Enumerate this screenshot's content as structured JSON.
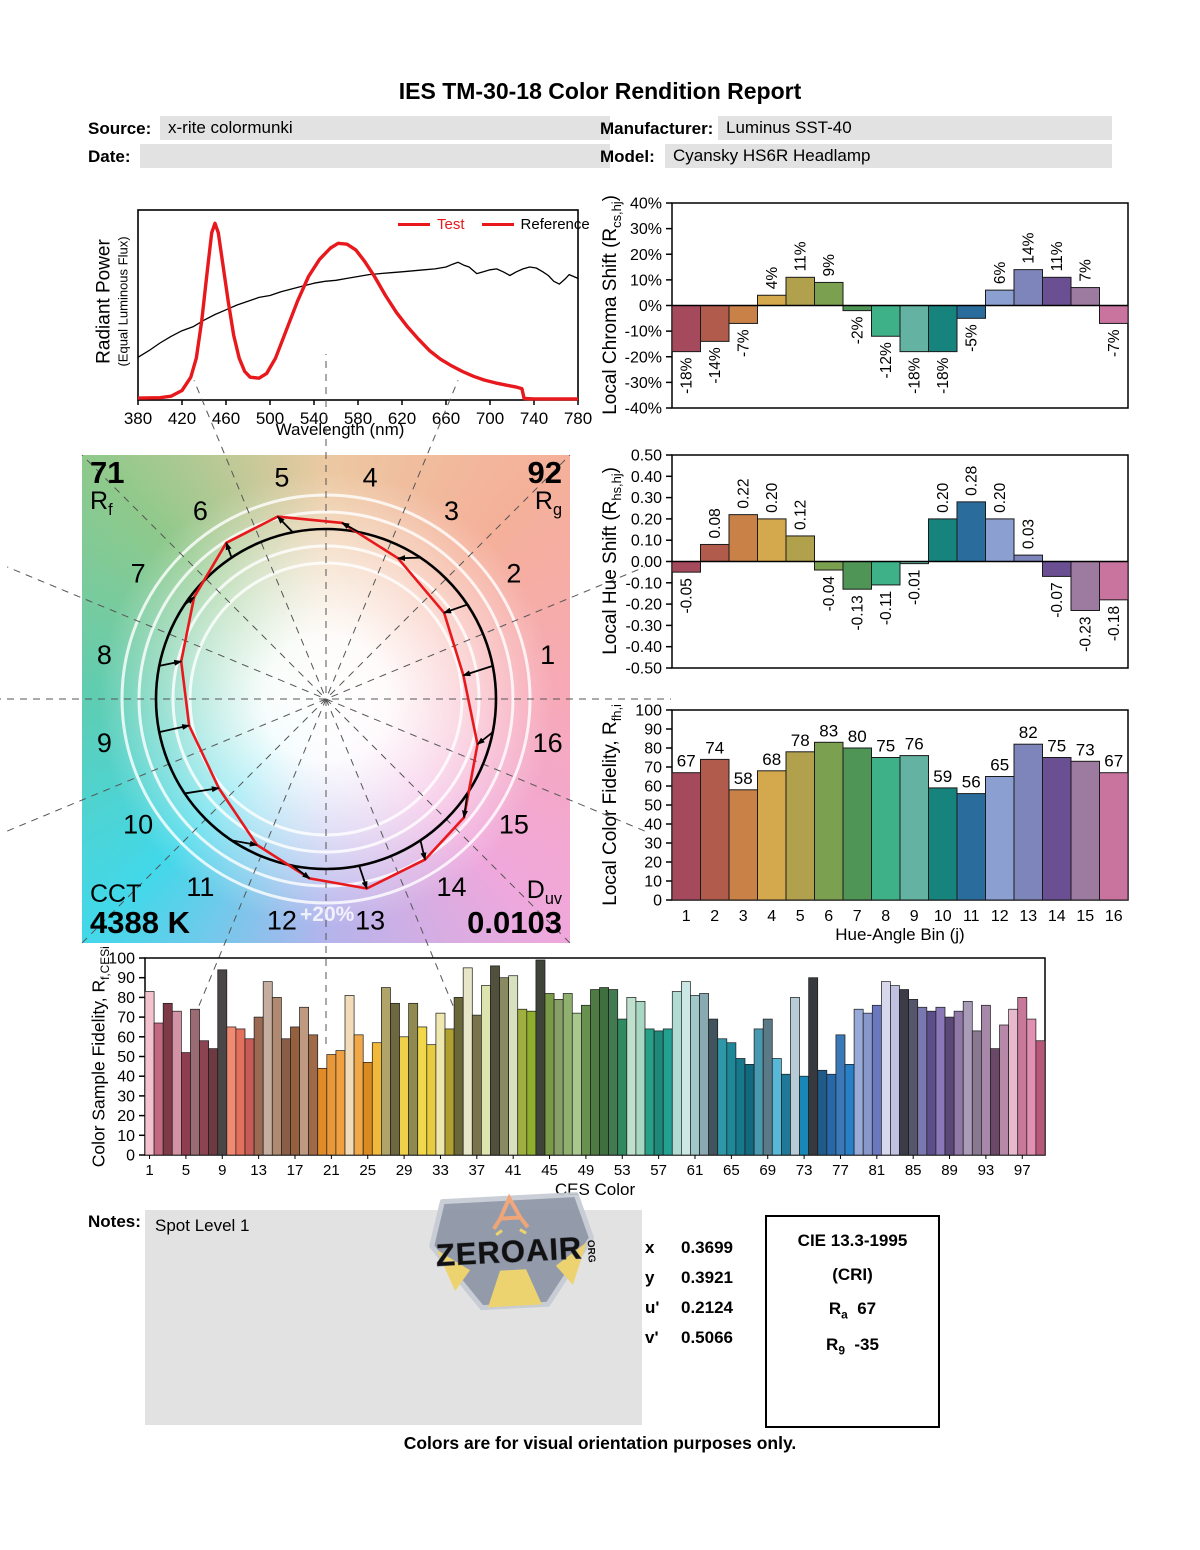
{
  "header": {
    "title": "IES TM-30-18 Color Rendition Report",
    "source_label": "Source:",
    "source_value": "x-rite colormunki",
    "date_label": "Date:",
    "date_value": "",
    "manufacturer_label": "Manufacturer:",
    "manufacturer_value": "Luminus SST-40",
    "model_label": "Model:",
    "model_value": "Cyansky HS6R Headlamp"
  },
  "colors": {
    "accent_red": "#e8191c",
    "field_bg": "#e2e2e2",
    "hue_bins": [
      "#a5495c",
      "#b05b4b",
      "#c98148",
      "#d4a94e",
      "#b2a14c",
      "#7ba04f",
      "#4f9556",
      "#3eb189",
      "#64b2a2",
      "#17837d",
      "#2a6d9d",
      "#8b9fd1",
      "#7e85ba",
      "#6b4f93",
      "#9d7ba1",
      "#c9739f"
    ]
  },
  "cvg": {
    "rf": {
      "value": "71",
      "base": "R",
      "sub": "f"
    },
    "rg": {
      "value": "92",
      "base": "R",
      "sub": "g"
    },
    "cct": {
      "label": "CCT",
      "value": "4388 K"
    },
    "duv": {
      "base": "D",
      "sub": "uv",
      "value": "0.0103"
    },
    "ring_label": "+20%",
    "bin_labels": [
      "1",
      "2",
      "3",
      "4",
      "5",
      "6",
      "7",
      "8",
      "9",
      "10",
      "11",
      "12",
      "13",
      "14",
      "15",
      "16"
    ]
  },
  "notes": {
    "label": "Notes:",
    "value": "Spot Level 1"
  },
  "logo": {
    "text": "ZEROAIR",
    "suffix": "ORG"
  },
  "colorimetry": {
    "rows": [
      {
        "label": "x",
        "value": "0.3699"
      },
      {
        "label": "y",
        "value": "0.3921"
      },
      {
        "label": "u'",
        "value": "0.2124"
      },
      {
        "label": "v'",
        "value": "0.5066"
      }
    ]
  },
  "cri": {
    "title": "CIE 13.3-1995",
    "subtitle": "(CRI)",
    "ra": {
      "base": "R",
      "sub": "a",
      "value": "67"
    },
    "r9": {
      "base": "R",
      "sub": "9",
      "value": "-35"
    }
  },
  "footer": {
    "text": "Colors are for visual orientation purposes only."
  },
  "chart_data": [
    {
      "id": "spd",
      "type": "line",
      "xlabel": "Wavelength (nm)",
      "ylabel_line1": "Radiant Power",
      "ylabel_line2": "(Equal Luminous Flux)",
      "xlim": [
        380,
        780
      ],
      "ylim": [
        0,
        1
      ],
      "x_ticks": [
        "380",
        "420",
        "460",
        "500",
        "540",
        "580",
        "620",
        "660",
        "700",
        "740",
        "780"
      ],
      "legend": [
        {
          "label": "Test",
          "color": "#e8191c"
        },
        {
          "label": "Reference",
          "color": "#000000"
        }
      ],
      "series": [
        {
          "name": "Test",
          "color": "#e8191c",
          "width": 3.4,
          "points": [
            [
              380,
              0.01
            ],
            [
              400,
              0.012
            ],
            [
              410,
              0.02
            ],
            [
              420,
              0.05
            ],
            [
              428,
              0.12
            ],
            [
              433,
              0.22
            ],
            [
              438,
              0.42
            ],
            [
              443,
              0.68
            ],
            [
              447,
              0.88
            ],
            [
              450,
              0.93
            ],
            [
              453,
              0.88
            ],
            [
              457,
              0.72
            ],
            [
              462,
              0.52
            ],
            [
              467,
              0.34
            ],
            [
              472,
              0.22
            ],
            [
              477,
              0.15
            ],
            [
              482,
              0.12
            ],
            [
              490,
              0.115
            ],
            [
              497,
              0.14
            ],
            [
              505,
              0.22
            ],
            [
              515,
              0.37
            ],
            [
              525,
              0.52
            ],
            [
              535,
              0.65
            ],
            [
              545,
              0.74
            ],
            [
              555,
              0.8
            ],
            [
              562,
              0.825
            ],
            [
              570,
              0.82
            ],
            [
              578,
              0.79
            ],
            [
              586,
              0.73
            ],
            [
              595,
              0.65
            ],
            [
              605,
              0.55
            ],
            [
              615,
              0.46
            ],
            [
              625,
              0.385
            ],
            [
              635,
              0.32
            ],
            [
              645,
              0.26
            ],
            [
              655,
              0.215
            ],
            [
              665,
              0.18
            ],
            [
              675,
              0.15
            ],
            [
              685,
              0.125
            ],
            [
              695,
              0.105
            ],
            [
              705,
              0.09
            ],
            [
              715,
              0.078
            ],
            [
              724,
              0.068
            ],
            [
              729,
              0.06
            ],
            [
              731,
              0.008
            ],
            [
              740,
              0.006
            ],
            [
              780,
              0.006
            ]
          ]
        },
        {
          "name": "Reference",
          "color": "#000000",
          "width": 1.3,
          "points": [
            [
              380,
              0.225
            ],
            [
              390,
              0.26
            ],
            [
              400,
              0.3
            ],
            [
              410,
              0.335
            ],
            [
              420,
              0.365
            ],
            [
              430,
              0.385
            ],
            [
              440,
              0.42
            ],
            [
              450,
              0.45
            ],
            [
              460,
              0.475
            ],
            [
              470,
              0.5
            ],
            [
              480,
              0.52
            ],
            [
              490,
              0.54
            ],
            [
              500,
              0.55
            ],
            [
              510,
              0.57
            ],
            [
              520,
              0.585
            ],
            [
              530,
              0.6
            ],
            [
              540,
              0.615
            ],
            [
              550,
              0.625
            ],
            [
              560,
              0.63
            ],
            [
              570,
              0.64
            ],
            [
              580,
              0.65
            ],
            [
              590,
              0.66
            ],
            [
              600,
              0.665
            ],
            [
              610,
              0.67
            ],
            [
              620,
              0.675
            ],
            [
              630,
              0.68
            ],
            [
              640,
              0.685
            ],
            [
              650,
              0.69
            ],
            [
              660,
              0.7
            ],
            [
              666,
              0.715
            ],
            [
              671,
              0.725
            ],
            [
              676,
              0.71
            ],
            [
              681,
              0.7
            ],
            [
              688,
              0.665
            ],
            [
              694,
              0.675
            ],
            [
              700,
              0.685
            ],
            [
              706,
              0.69
            ],
            [
              712,
              0.675
            ],
            [
              718,
              0.655
            ],
            [
              724,
              0.675
            ],
            [
              730,
              0.69
            ],
            [
              736,
              0.7
            ],
            [
              742,
              0.695
            ],
            [
              748,
              0.675
            ],
            [
              753,
              0.655
            ],
            [
              758,
              0.625
            ],
            [
              763,
              0.61
            ],
            [
              768,
              0.635
            ],
            [
              772,
              0.66
            ],
            [
              776,
              0.65
            ],
            [
              780,
              0.64
            ]
          ]
        }
      ]
    },
    {
      "id": "chroma",
      "type": "bar",
      "ylabel": {
        "pre": "Local Chroma Shift (R",
        "sub": "cs,hj",
        "post": ")"
      },
      "ylim": [
        -40,
        40
      ],
      "yticks": [
        {
          "v": 40,
          "label": "40%"
        },
        {
          "v": 30,
          "label": "30%"
        },
        {
          "v": 20,
          "label": "20%"
        },
        {
          "v": 10,
          "label": "10%"
        },
        {
          "v": 0,
          "label": "0%"
        },
        {
          "v": -10,
          "label": "-10%"
        },
        {
          "v": -20,
          "label": "-20%"
        },
        {
          "v": -30,
          "label": "-30%"
        },
        {
          "v": -40,
          "label": "-40%"
        }
      ],
      "categories": [
        1,
        2,
        3,
        4,
        5,
        6,
        7,
        8,
        9,
        10,
        11,
        12,
        13,
        14,
        15,
        16
      ],
      "values": [
        -18,
        -14,
        -7,
        4,
        11,
        9,
        -2,
        -12,
        -18,
        -18,
        -5,
        6,
        14,
        11,
        7,
        -7
      ],
      "labels": [
        "-18%",
        "-14%",
        "-7%",
        "4%",
        "11%",
        "9%",
        "-2%",
        "-12%",
        "-18%",
        "-18%",
        "-5%",
        "6%",
        "14%",
        "11%",
        "7%",
        "-7%"
      ]
    },
    {
      "id": "hue",
      "type": "bar",
      "ylabel": {
        "pre": "Local Hue Shift (R",
        "sub": "hs,hj",
        "post": ")"
      },
      "ylim": [
        -0.5,
        0.5
      ],
      "yticks": [
        {
          "v": 0.5,
          "label": "0.50"
        },
        {
          "v": 0.4,
          "label": "0.40"
        },
        {
          "v": 0.3,
          "label": "0.30"
        },
        {
          "v": 0.2,
          "label": "0.20"
        },
        {
          "v": 0.1,
          "label": "0.10"
        },
        {
          "v": 0,
          "label": "0.00"
        },
        {
          "v": -0.1,
          "label": "-0.10"
        },
        {
          "v": -0.2,
          "label": "-0.20"
        },
        {
          "v": -0.3,
          "label": "-0.30"
        },
        {
          "v": -0.4,
          "label": "-0.40"
        },
        {
          "v": -0.5,
          "label": "-0.50"
        }
      ],
      "categories": [
        1,
        2,
        3,
        4,
        5,
        6,
        7,
        8,
        9,
        10,
        11,
        12,
        13,
        14,
        15,
        16
      ],
      "values": [
        -0.05,
        0.08,
        0.22,
        0.2,
        0.12,
        -0.04,
        -0.13,
        -0.11,
        -0.01,
        0.2,
        0.28,
        0.2,
        0.03,
        -0.07,
        -0.23,
        -0.18
      ],
      "labels": [
        "-0.05",
        "0.08",
        "0.22",
        "0.20",
        "0.12",
        "-0.04",
        "-0.13",
        "-0.11",
        "-0.01",
        "0.20",
        "0.28",
        "0.20",
        "0.03",
        "-0.07",
        "-0.23",
        "-0.18"
      ]
    },
    {
      "id": "localfid",
      "type": "bar",
      "ylabel": {
        "pre": "Local Color Fidelity, R",
        "sub": "fh,i",
        "post": ""
      },
      "xlabel": "Hue-Angle Bin (j)",
      "ylim": [
        0,
        100
      ],
      "yticks": [
        {
          "v": 100,
          "label": "100"
        },
        {
          "v": 90,
          "label": "90"
        },
        {
          "v": 80,
          "label": "80"
        },
        {
          "v": 70,
          "label": "70"
        },
        {
          "v": 60,
          "label": "60"
        },
        {
          "v": 50,
          "label": "50"
        },
        {
          "v": 40,
          "label": "40"
        },
        {
          "v": 30,
          "label": "30"
        },
        {
          "v": 20,
          "label": "20"
        },
        {
          "v": 10,
          "label": "10"
        },
        {
          "v": 0,
          "label": "0"
        }
      ],
      "categories": [
        "1",
        "2",
        "3",
        "4",
        "5",
        "6",
        "7",
        "8",
        "9",
        "10",
        "11",
        "12",
        "13",
        "14",
        "15",
        "16"
      ],
      "values": [
        67,
        74,
        58,
        68,
        78,
        83,
        80,
        75,
        76,
        59,
        56,
        65,
        82,
        75,
        73,
        67
      ],
      "labels": [
        "67",
        "74",
        "58",
        "68",
        "78",
        "83",
        "80",
        "75",
        "76",
        "59",
        "56",
        "65",
        "82",
        "75",
        "73",
        "67"
      ]
    },
    {
      "id": "ces",
      "type": "bar",
      "ylabel": {
        "pre": "Color Sample Fidelity, R",
        "sub": "f,CESi",
        "post": ""
      },
      "xlabel": "CES Color",
      "ylim": [
        0,
        100
      ],
      "yticks": [
        {
          "v": 100,
          "label": "100"
        },
        {
          "v": 90,
          "label": "90"
        },
        {
          "v": 80,
          "label": "80"
        },
        {
          "v": 70,
          "label": "70"
        },
        {
          "v": 60,
          "label": "60"
        },
        {
          "v": 50,
          "label": "50"
        },
        {
          "v": 40,
          "label": "40"
        },
        {
          "v": 30,
          "label": "30"
        },
        {
          "v": 20,
          "label": "20"
        },
        {
          "v": 10,
          "label": "10"
        },
        {
          "v": 0,
          "label": "0"
        }
      ],
      "x_tick_every": 4,
      "x_tick_labels": [
        "1",
        "5",
        "9",
        "13",
        "17",
        "21",
        "25",
        "29",
        "33",
        "37",
        "41",
        "45",
        "49",
        "53",
        "57",
        "61",
        "65",
        "69",
        "73",
        "77",
        "81",
        "85",
        "89",
        "93",
        "97"
      ],
      "values": [
        83,
        67,
        77,
        73,
        52,
        74,
        58,
        54,
        94,
        65,
        64,
        59,
        70,
        88,
        80,
        59,
        65,
        75,
        61,
        44,
        51,
        53,
        81,
        61,
        47,
        57,
        85,
        77,
        60,
        77,
        65,
        56,
        72,
        64,
        80,
        95,
        71,
        86,
        96,
        90,
        91,
        74,
        73,
        99,
        82,
        79,
        82,
        72,
        76,
        84,
        85,
        84,
        69,
        80,
        78,
        64,
        63,
        64,
        83,
        88,
        81,
        82,
        69,
        59,
        57,
        49,
        46,
        64,
        69,
        49,
        41,
        80,
        40,
        90,
        43,
        41,
        61,
        46,
        74,
        72,
        76,
        88,
        86,
        84,
        79,
        75,
        73,
        75,
        70,
        73,
        78,
        63,
        76,
        54,
        66,
        74,
        80,
        69,
        58
      ],
      "bar_colors": [
        "#f2c3ce",
        "#c26880",
        "#7e3b47",
        "#d492a6",
        "#8e3d4e",
        "#9a6b72",
        "#8c4352",
        "#6e3a42",
        "#4a4648",
        "#f28a72",
        "#e2705c",
        "#c75b55",
        "#9a6a52",
        "#c5ada0",
        "#b08a70",
        "#8a5d48",
        "#95603e",
        "#c09a80",
        "#a06a48",
        "#e08a28",
        "#e89838",
        "#f0a040",
        "#f2dbb8",
        "#f0a848",
        "#d98a20",
        "#f2b83a",
        "#b0a468",
        "#6e6840",
        "#eed04a",
        "#908a50",
        "#f0d84a",
        "#e8cc40",
        "#eee8b0",
        "#b0a030",
        "#6a6838",
        "#e8e6c8",
        "#7a744a",
        "#dde4b0",
        "#50503c",
        "#8a8a62",
        "#d8e0c0",
        "#a0b040",
        "#8fae2e",
        "#3e4438",
        "#7a9a48",
        "#88a068",
        "#90b070",
        "#a8c890",
        "#68904e",
        "#4e7a44",
        "#3f6e3f",
        "#427a52",
        "#2f8a60",
        "#bfe0cc",
        "#a8d8c4",
        "#28a088",
        "#1f8878",
        "#22a090",
        "#b0dcd4",
        "#cce8e4",
        "#a0c8c8",
        "#88aab0",
        "#41535c",
        "#2f98a8",
        "#1f8898",
        "#17788c",
        "#126a80",
        "#4898b0",
        "#5a7a88",
        "#58b8d8",
        "#1f7898",
        "#b8ccd8",
        "#1888b8",
        "#38393f",
        "#1f5a88",
        "#2868a8",
        "#3a78b8",
        "#2880c8",
        "#98aad8",
        "#8898cc",
        "#6a78c0",
        "#d8d8ec",
        "#c0c0e0",
        "#3c3c48",
        "#55556c",
        "#7a78b0",
        "#5c4e88",
        "#8a78b8",
        "#5c4878",
        "#9078a8",
        "#a89cb8",
        "#8a7890",
        "#a888a8",
        "#6a4868",
        "#b888a8",
        "#e8b8cc",
        "#c87898",
        "#e090b0",
        "#b85878"
      ]
    }
  ]
}
